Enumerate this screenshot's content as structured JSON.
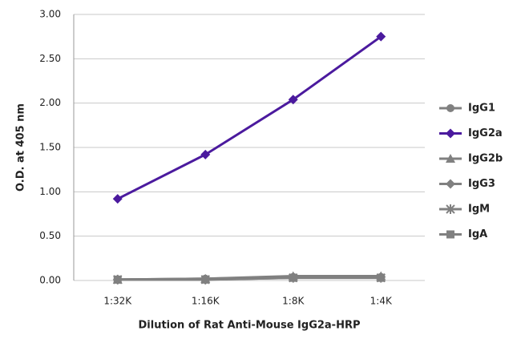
{
  "chart_data": {
    "type": "line",
    "y_label": "O.D. at 405 nm",
    "x_label": "Dilution of Rat Anti-Mouse IgG2a-HRP",
    "categories": [
      "1:32K",
      "1:16K",
      "1:8K",
      "1:4K"
    ],
    "ylim": [
      0,
      3
    ],
    "yticks": [
      {
        "value": 0,
        "label": "0.00"
      },
      {
        "value": 0.5,
        "label": "0.50"
      },
      {
        "value": 1,
        "label": "1.00"
      },
      {
        "value": 1.5,
        "label": "1.50"
      },
      {
        "value": 2,
        "label": "2.00"
      },
      {
        "value": 2.5,
        "label": "2.50"
      },
      {
        "value": 3,
        "label": "3.00"
      }
    ],
    "grid": true,
    "legend": "right",
    "series": [
      {
        "name": "IgG1",
        "color": "#808080",
        "marker": "circle",
        "values": [
          0.01,
          0.02,
          0.04,
          0.04
        ]
      },
      {
        "name": "IgG2a",
        "color": "#4b1a9e",
        "marker": "diamond",
        "values": [
          0.92,
          1.42,
          2.04,
          2.75
        ]
      },
      {
        "name": "IgG2b",
        "color": "#808080",
        "marker": "triangle",
        "values": [
          0.01,
          0.02,
          0.05,
          0.05
        ]
      },
      {
        "name": "IgG3",
        "color": "#808080",
        "marker": "diamond",
        "values": [
          0.01,
          0.01,
          0.04,
          0.04
        ]
      },
      {
        "name": "IgM",
        "color": "#808080",
        "marker": "star",
        "values": [
          0.01,
          0.01,
          0.03,
          0.03
        ]
      },
      {
        "name": "IgA",
        "color": "#808080",
        "marker": "square",
        "values": [
          0.01,
          0.01,
          0.03,
          0.03
        ]
      }
    ]
  }
}
